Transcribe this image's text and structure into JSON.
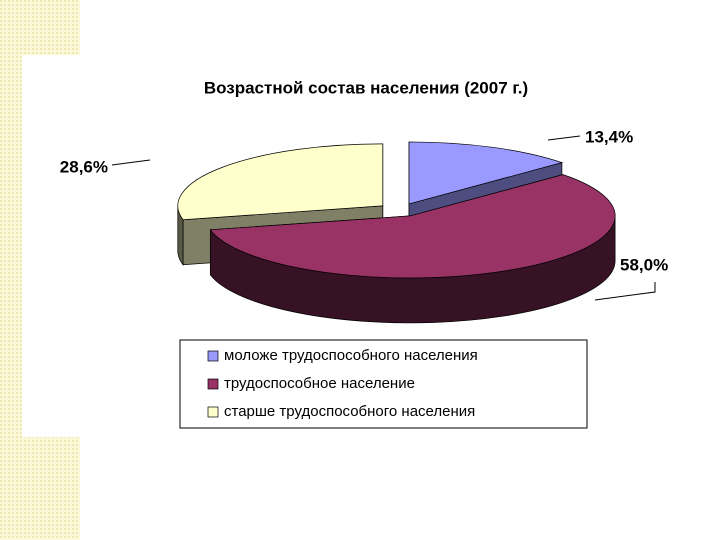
{
  "chart_data": {
    "type": "pie3d",
    "title": "Возрастной состав населения (2007 г.)",
    "categories": [
      "моложе трудоспособного населения",
      "трудоспособное население",
      "старше трудоспособного населения"
    ],
    "values": [
      13.4,
      58.0,
      28.6
    ],
    "value_labels": [
      "13,4%",
      "58,0%",
      "28,6%"
    ],
    "colors": [
      "#9999ff",
      "#993366",
      "#ffffcc"
    ],
    "legend": "bottom"
  }
}
